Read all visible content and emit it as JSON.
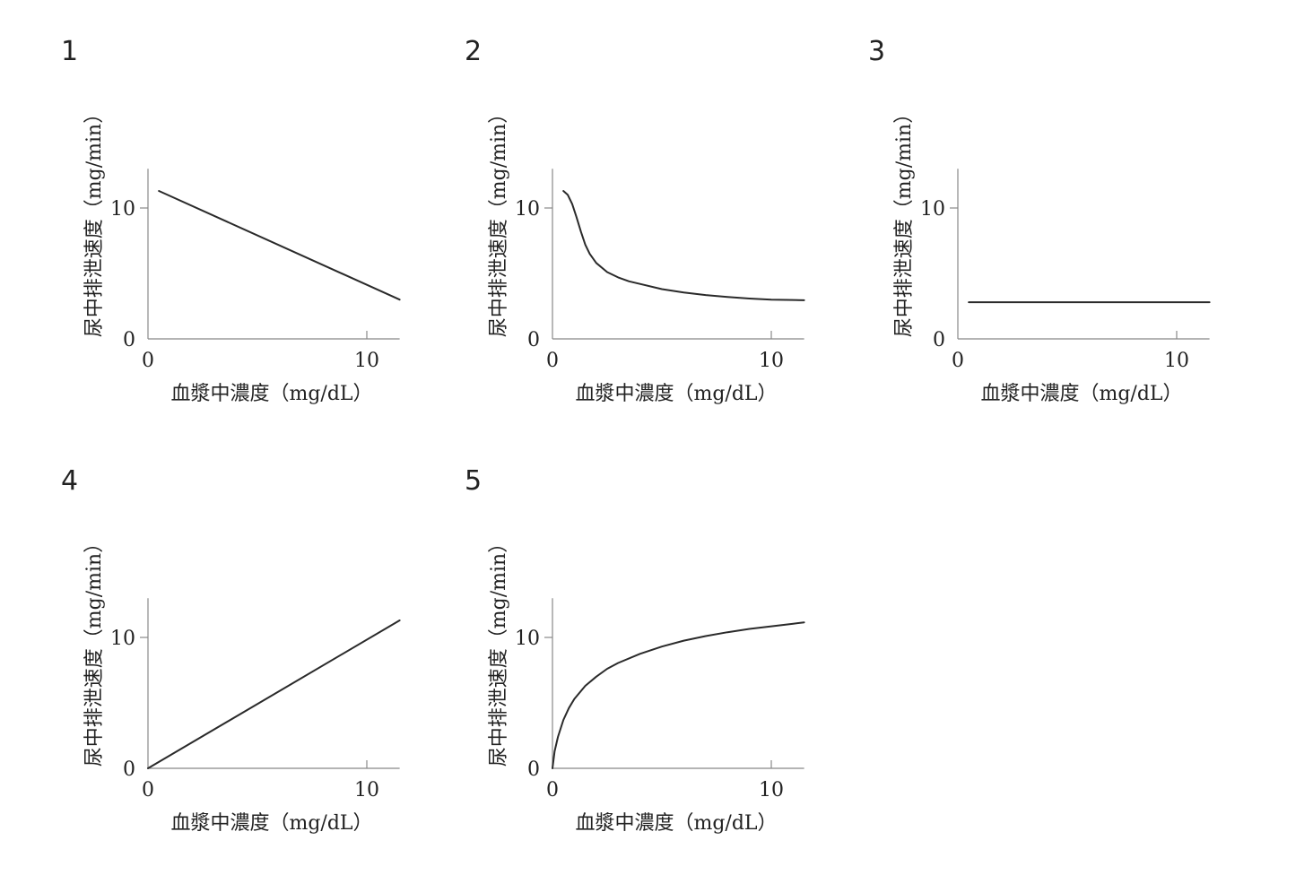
{
  "chart_data": [
    {
      "type": "line",
      "panel_label": "1",
      "xlabel": "血漿中濃度（mg/dL）",
      "ylabel": "尿中排泄速度（mg/min）",
      "xlim": [
        0,
        11.5
      ],
      "ylim": [
        0,
        13
      ],
      "xticks": [
        "0",
        "10"
      ],
      "yticks": [
        "0",
        "10"
      ],
      "grid": false,
      "series": [
        {
          "x": [
            0.5,
            11.5
          ],
          "y": [
            11.3,
            3.0
          ]
        }
      ]
    },
    {
      "type": "line",
      "panel_label": "2",
      "xlabel": "血漿中濃度（mg/dL）",
      "ylabel": "尿中排泄速度（mg/min）",
      "xlim": [
        0,
        11.5
      ],
      "ylim": [
        0,
        13
      ],
      "xticks": [
        "0",
        "10"
      ],
      "yticks": [
        "0",
        "10"
      ],
      "grid": false,
      "series": [
        {
          "x": [
            0.5,
            0.7,
            0.9,
            1.1,
            1.3,
            1.5,
            1.7,
            2.0,
            2.5,
            3.0,
            3.5,
            4.0,
            5.0,
            6.0,
            7.0,
            8.0,
            9.0,
            10.0,
            11.0,
            11.5
          ],
          "y": [
            11.3,
            11.0,
            10.3,
            9.3,
            8.2,
            7.2,
            6.5,
            5.8,
            5.1,
            4.7,
            4.4,
            4.2,
            3.8,
            3.55,
            3.35,
            3.2,
            3.08,
            3.0,
            2.97,
            2.95
          ]
        }
      ]
    },
    {
      "type": "line",
      "panel_label": "3",
      "xlabel": "血漿中濃度（mg/dL）",
      "ylabel": "尿中排泄速度（mg/min）",
      "xlim": [
        0,
        11.5
      ],
      "ylim": [
        0,
        13
      ],
      "xticks": [
        "0",
        "10"
      ],
      "yticks": [
        "0",
        "10"
      ],
      "grid": false,
      "series": [
        {
          "x": [
            0.5,
            11.5
          ],
          "y": [
            2.8,
            2.8
          ]
        }
      ]
    },
    {
      "type": "line",
      "panel_label": "4",
      "xlabel": "血漿中濃度（mg/dL）",
      "ylabel": "尿中排泄速度（mg/min）",
      "xlim": [
        0,
        11.5
      ],
      "ylim": [
        0,
        13
      ],
      "xticks": [
        "0",
        "10"
      ],
      "yticks": [
        "0",
        "10"
      ],
      "grid": false,
      "series": [
        {
          "x": [
            0,
            11.5
          ],
          "y": [
            0,
            11.3
          ]
        }
      ]
    },
    {
      "type": "line",
      "panel_label": "5",
      "xlabel": "血漿中濃度（mg/dL）",
      "ylabel": "尿中排泄速度（mg/min）",
      "xlim": [
        0,
        11.5
      ],
      "ylim": [
        0,
        13
      ],
      "xticks": [
        "0",
        "10"
      ],
      "yticks": [
        "0",
        "10"
      ],
      "grid": false,
      "series": [
        {
          "x": [
            0,
            0.1,
            0.25,
            0.5,
            0.75,
            1.0,
            1.5,
            2.0,
            2.5,
            3.0,
            4.0,
            5.0,
            6.0,
            7.0,
            8.0,
            9.0,
            10.0,
            11.0,
            11.5
          ],
          "y": [
            0,
            1.3,
            2.4,
            3.7,
            4.6,
            5.3,
            6.3,
            7.0,
            7.6,
            8.05,
            8.75,
            9.3,
            9.75,
            10.1,
            10.4,
            10.65,
            10.85,
            11.05,
            11.15
          ]
        }
      ]
    }
  ]
}
